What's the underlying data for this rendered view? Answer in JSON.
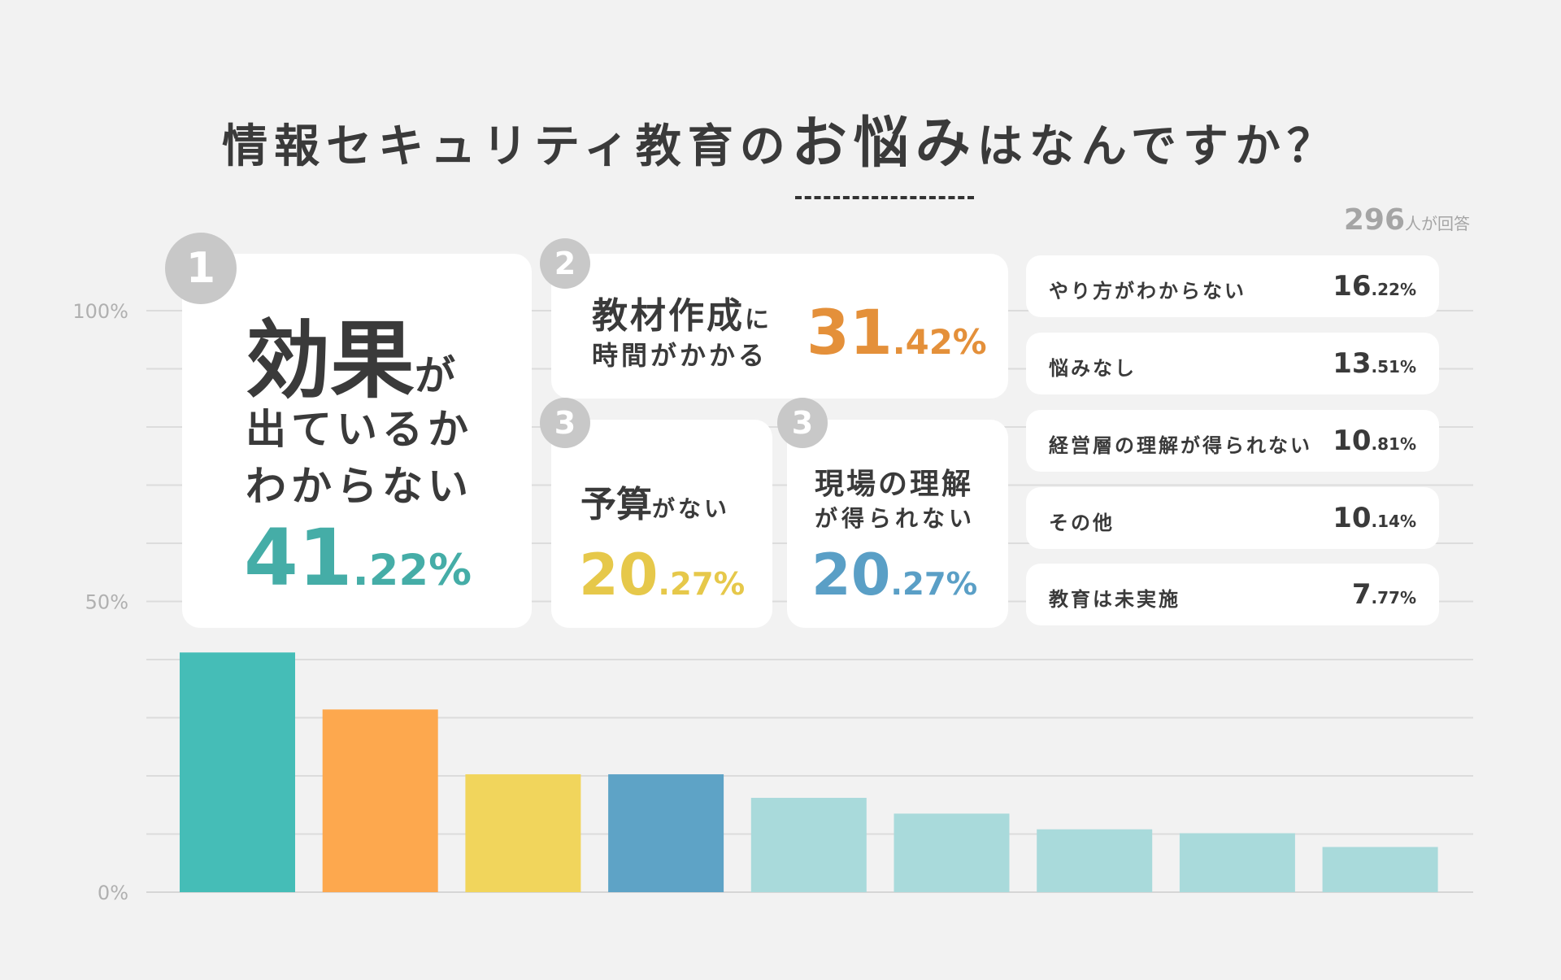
{
  "title": {
    "before": "情報セキュリティ教育の",
    "highlight": "お悩み",
    "after": "はなんですか？"
  },
  "respondents": {
    "count": "296",
    "unit": "人が回答"
  },
  "top": [
    {
      "rank": "1",
      "label_big": "効果",
      "label_small": "が",
      "label_line2": "出ているか",
      "label_line3": "わからない",
      "int": "41",
      "dec": ".22%",
      "color": "#45bdb7"
    },
    {
      "rank": "2",
      "label_line1": "教材作成",
      "label_small": "に",
      "label_line2": "時間がかかる",
      "int": "31",
      "dec": ".42%",
      "color": "#e89a3f"
    },
    {
      "rank": "3",
      "label_big": "予算",
      "label_small": "がない",
      "int": "20",
      "dec": ".27%",
      "color": "#e8c94a"
    },
    {
      "rank": "3",
      "label_line1": "現場の理解",
      "label_line2": "が得られない",
      "int": "20",
      "dec": ".27%",
      "color": "#5b9fc4"
    }
  ],
  "others": [
    {
      "label": "やり方がわからない",
      "int": "16",
      "dec": ".22%"
    },
    {
      "label": "悩みなし",
      "int": "13",
      "dec": ".51%"
    },
    {
      "label": "経営層の理解が得られない",
      "int": "10",
      "dec": ".81%"
    },
    {
      "label": "その他",
      "int": "10",
      "dec": ".14%"
    },
    {
      "label": "教育は未実施",
      "int": "7",
      "dec": ".77%"
    }
  ],
  "chart_data": {
    "type": "bar",
    "categories": [
      "効果が出ているかわからない",
      "教材作成に時間がかかる",
      "予算がない",
      "現場の理解が得られない",
      "やり方がわからない",
      "悩みなし",
      "経営層の理解が得られない",
      "その他",
      "教育は未実施"
    ],
    "values": [
      41.22,
      31.42,
      20.27,
      20.27,
      16.22,
      13.51,
      10.81,
      10.14,
      7.77
    ],
    "colors": [
      "#45bdb7",
      "#fda84e",
      "#f1d55c",
      "#5ea3c6",
      "#a9dadb",
      "#a9dadb",
      "#a9dadb",
      "#a9dadb",
      "#a9dadb"
    ],
    "ylim": [
      0,
      100
    ],
    "yticks": [
      "0%",
      "50%",
      "100%"
    ],
    "grid": true
  }
}
